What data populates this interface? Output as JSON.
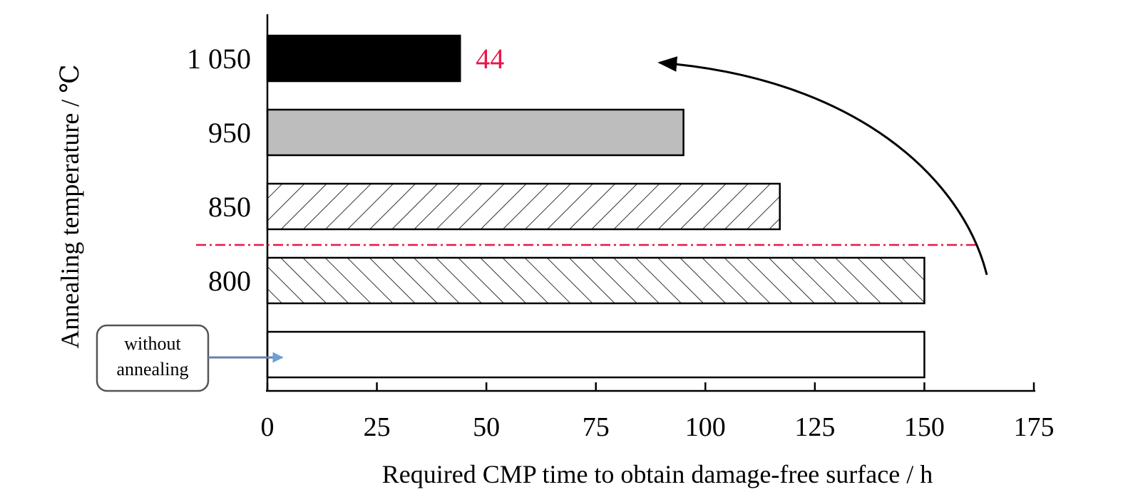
{
  "chart_data": {
    "type": "bar",
    "orientation": "horizontal",
    "categories": [
      "1 050",
      "950",
      "850",
      "800",
      "without annealing"
    ],
    "values": [
      44,
      95,
      117,
      150,
      150
    ],
    "bar_styles": [
      "solid-black",
      "solid-gray",
      "hatch-forward",
      "hatch-back",
      "empty"
    ],
    "colors": {
      "solid-black": "#000000",
      "solid-gray": "#bdbdbd",
      "hatch": "#000000",
      "empty": "#ffffff",
      "threshold_line": "#e8174a",
      "value_label": "#e8174a",
      "callout_arrow": "#6d7fb0"
    },
    "xlabel": "Required CMP time to obtain damage-free surface / h",
    "ylabel": "Annealing temperature / ℃",
    "xlim": [
      0,
      175
    ],
    "xticks": [
      "0",
      "25",
      "50",
      "75",
      "100",
      "125",
      "150",
      "175"
    ],
    "value_labels": [
      {
        "category": "1 050",
        "text": "44"
      }
    ],
    "threshold_between": [
      "850",
      "800"
    ],
    "callout": {
      "text_line1": "without",
      "text_line2": "annealing"
    },
    "grid": false,
    "legend": "none"
  }
}
